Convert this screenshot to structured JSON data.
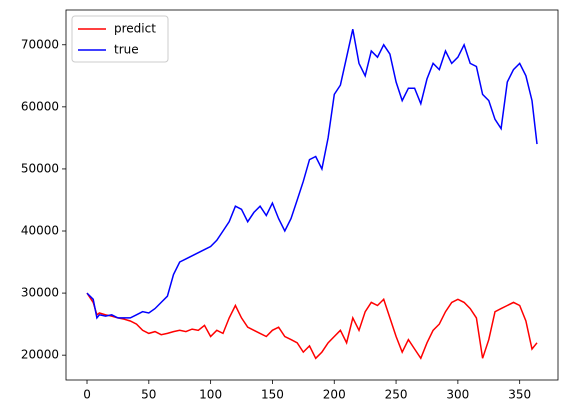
{
  "chart_data": {
    "type": "line",
    "x": [
      0,
      5,
      8,
      10,
      15,
      20,
      25,
      30,
      35,
      40,
      45,
      50,
      55,
      60,
      65,
      70,
      75,
      80,
      85,
      90,
      95,
      100,
      105,
      110,
      115,
      120,
      125,
      130,
      135,
      140,
      145,
      150,
      155,
      160,
      165,
      170,
      175,
      180,
      185,
      190,
      195,
      200,
      205,
      210,
      215,
      220,
      225,
      230,
      235,
      240,
      245,
      250,
      255,
      260,
      265,
      270,
      275,
      280,
      285,
      290,
      295,
      300,
      305,
      310,
      315,
      320,
      325,
      330,
      335,
      340,
      345,
      350,
      355,
      360,
      364
    ],
    "series": [
      {
        "name": "predict",
        "color": "#ff0000",
        "values": [
          30000,
          28500,
          26500,
          26800,
          26500,
          26300,
          26000,
          25800,
          25500,
          25000,
          24000,
          23500,
          23800,
          23300,
          23500,
          23800,
          24000,
          23800,
          24200,
          24000,
          24800,
          23000,
          24000,
          23500,
          26000,
          28000,
          26000,
          24500,
          24000,
          23500,
          23000,
          24000,
          24500,
          23000,
          22500,
          22000,
          20500,
          21500,
          19500,
          20500,
          22000,
          23000,
          24000,
          22000,
          26000,
          24000,
          27000,
          28500,
          28000,
          29000,
          26000,
          23000,
          20500,
          22500,
          21000,
          19500,
          22000,
          24000,
          25000,
          27000,
          28500,
          29000,
          28500,
          27500,
          26000,
          19500,
          22500,
          27000,
          27500,
          28000,
          28500,
          28000,
          25500,
          21000,
          22000
        ]
      },
      {
        "name": "true",
        "color": "#0000ff",
        "values": [
          30000,
          29000,
          26000,
          26500,
          26300,
          26500,
          26000,
          26000,
          26000,
          26500,
          27000,
          26800,
          27500,
          28500,
          29500,
          33000,
          35000,
          35500,
          36000,
          36500,
          37000,
          37500,
          38500,
          40000,
          41500,
          44000,
          43500,
          41500,
          43000,
          44000,
          42500,
          44500,
          42000,
          40000,
          42000,
          45000,
          48000,
          51500,
          52000,
          50000,
          55000,
          62000,
          63500,
          68000,
          72500,
          67000,
          65000,
          69000,
          68000,
          70000,
          68500,
          64000,
          61000,
          63000,
          63000,
          60500,
          64500,
          67000,
          66000,
          69000,
          67000,
          68000,
          70000,
          67000,
          66500,
          62000,
          61000,
          58000,
          56500,
          64000,
          66000,
          67000,
          65000,
          61000,
          54000
        ]
      }
    ],
    "xlim": [
      -17,
      381
    ],
    "ylim": [
      16000,
      75600
    ],
    "xticks": [
      0,
      50,
      100,
      150,
      200,
      250,
      300,
      350
    ],
    "yticks": [
      20000,
      30000,
      40000,
      50000,
      60000,
      70000
    ],
    "legend": "upper left"
  }
}
